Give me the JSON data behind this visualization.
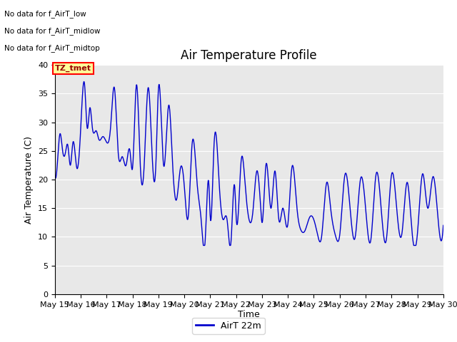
{
  "title": "Air Temperature Profile",
  "xlabel": "Time",
  "ylabel": "Air Temperature (C)",
  "legend_label": "AirT 22m",
  "ylim": [
    0,
    40
  ],
  "yticks": [
    0,
    5,
    10,
    15,
    20,
    25,
    30,
    35,
    40
  ],
  "line_color": "#0000CC",
  "background_color": "#E8E8E8",
  "no_data_texts": [
    "No data for f_AirT_low",
    "No data for f_AirT_midlow",
    "No data for f_AirT_midtop"
  ],
  "legend_box_color": "#FFFF99",
  "legend_text_color": "#990000",
  "title_fontsize": 12,
  "axis_label_fontsize": 9,
  "tick_fontsize": 8,
  "x_tick_labels": [
    "May 15",
    "May 16",
    "May 17",
    "May 18",
    "May 19",
    "May 20",
    "May 21",
    "May 22",
    "May 23",
    "May 24",
    "May 25",
    "May 26",
    "May 27",
    "May 28",
    "May 29",
    "May 30"
  ]
}
